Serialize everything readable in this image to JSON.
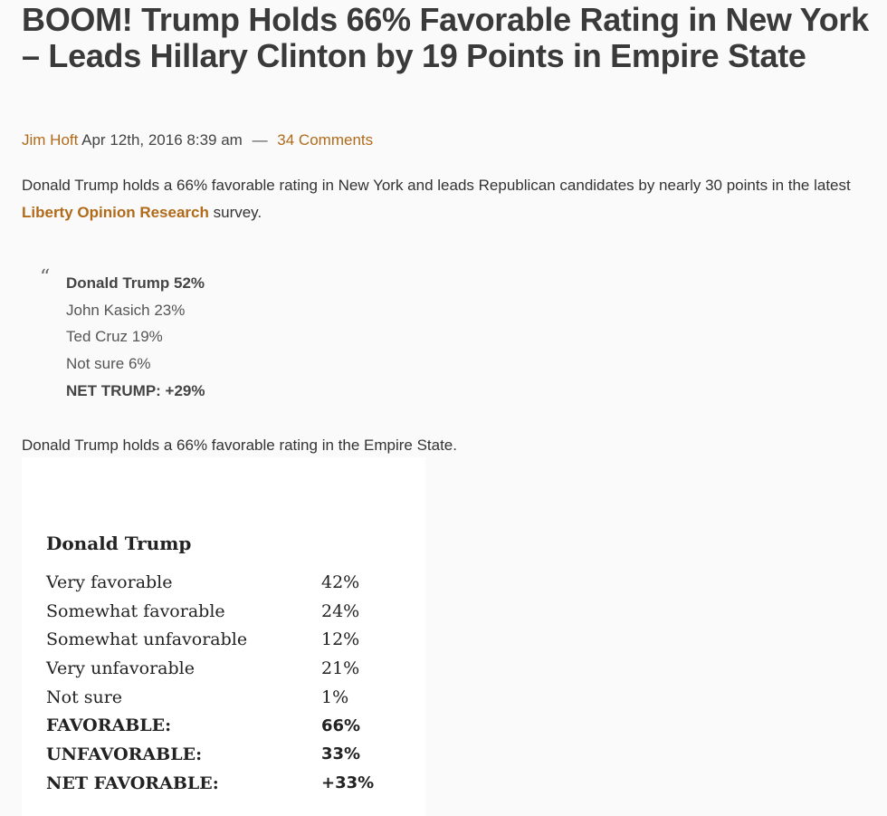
{
  "article": {
    "title": "BOOM! Trump Holds 66% Favorable Rating in New York – Leads Hillary Clinton by 19 Points in Empire State",
    "author": "Jim Hoft",
    "date": "Apr 12th, 2016 8:39 am",
    "separator": "—",
    "comments": "34 Comments",
    "intro_before_link": "Donald Trump holds a 66% favorable rating in New York and leads Republican candidates by nearly 30 points in the latest ",
    "intro_link": "Liberty Opinion Research",
    "intro_after_link": " survey.",
    "quote_mark": "“",
    "quote_lines": [
      {
        "text": "Donald Trump 52%",
        "bold": true
      },
      {
        "text": "John Kasich 23%",
        "bold": false
      },
      {
        "text": "Ted Cruz 19%",
        "bold": false
      },
      {
        "text": "Not sure 6%",
        "bold": false
      },
      {
        "text": "NET TRUMP: +29%",
        "bold": true
      }
    ],
    "second_paragraph": "Donald Trump holds a 66% favorable rating in the Empire State."
  },
  "poll": {
    "title": "Donald Trump",
    "rows": [
      {
        "label": "Very favorable",
        "value": "42%",
        "summary": false
      },
      {
        "label": "Somewhat favorable",
        "value": "24%",
        "summary": false
      },
      {
        "label": "Somewhat unfavorable",
        "value": "12%",
        "summary": false
      },
      {
        "label": "Very unfavorable",
        "value": "21%",
        "summary": false
      },
      {
        "label": "Not sure",
        "value": "1%",
        "summary": false
      },
      {
        "label": "FAVORABLE:",
        "value": "66%",
        "summary": true
      },
      {
        "label": "UNFAVORABLE:",
        "value": "33%",
        "summary": true
      },
      {
        "label": "NET FAVORABLE:",
        "value": "+33%",
        "summary": true
      }
    ]
  }
}
